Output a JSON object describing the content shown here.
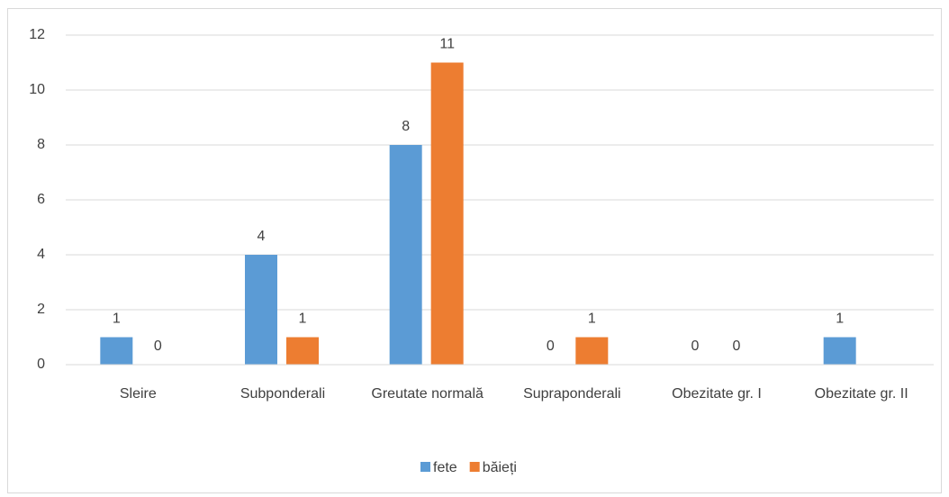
{
  "chart_data": {
    "type": "bar",
    "categories": [
      "Sleire",
      "Subponderali",
      "Greutate normală",
      "Supraponderali",
      "Obezitate gr. I",
      "Obezitate gr. II"
    ],
    "series": [
      {
        "name": "fete",
        "color": "#5b9bd5",
        "values": [
          1,
          4,
          8,
          0,
          0,
          1
        ]
      },
      {
        "name": "băieți",
        "color": "#ed7d31",
        "values": [
          0,
          1,
          11,
          1,
          0,
          null
        ]
      }
    ],
    "ylim": [
      0,
      12
    ],
    "yticks": [
      0,
      2,
      4,
      6,
      8,
      10,
      12
    ],
    "grid": true,
    "legend": "bottom"
  }
}
